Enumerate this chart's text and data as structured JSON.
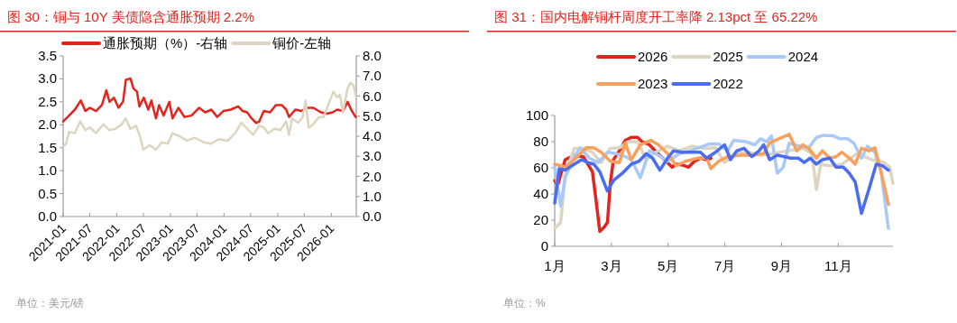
{
  "chart_data": [
    {
      "type": "line",
      "title": "图 30：铜与 10Y 美债隐含通胀预期 2.2%",
      "legend": "top",
      "xlim": [
        "2021-01-01",
        "2026-06-20"
      ],
      "xticks": [
        "2021-01",
        "2021-07",
        "2022-01",
        "2022-07",
        "2023-01",
        "2023-07",
        "2024-01",
        "2024-07",
        "2025-01",
        "2025-07",
        "2026-01"
      ],
      "ylim": [
        0,
        3.5
      ],
      "yticks": [
        {
          "value": 0,
          "label": "0.0"
        },
        {
          "value": 0.5,
          "label": "0.5"
        },
        {
          "value": 1,
          "label": "1.0"
        },
        {
          "value": 1.5,
          "label": "1.5"
        },
        {
          "value": 2,
          "label": "2.0"
        },
        {
          "value": 2.5,
          "label": "2.5"
        },
        {
          "value": 3,
          "label": "3.0"
        },
        {
          "value": 3.5,
          "label": "3.5"
        }
      ],
      "y2lim": [
        0,
        8
      ],
      "y2ticks": [
        {
          "value": 0,
          "label": "0.0"
        },
        {
          "value": 1,
          "label": "1.0"
        },
        {
          "value": 2,
          "label": "2.0"
        },
        {
          "value": 3,
          "label": "3.0"
        },
        {
          "value": 4,
          "label": "4.0"
        },
        {
          "value": 5,
          "label": "5.0"
        },
        {
          "value": 6,
          "label": "6.0"
        },
        {
          "value": 7,
          "label": "7.0"
        },
        {
          "value": 8,
          "label": "8.0"
        }
      ],
      "annotations": [
        "单位：美元/磅"
      ],
      "series": [
        {
          "name": "通胀预期（%）-右轴",
          "color": "#e3231c",
          "x": [
            "2021-01-01",
            "2021-02-10",
            "2021-03-22",
            "2021-05-01",
            "2021-06-01",
            "2021-07-01",
            "2021-08-13",
            "2021-09-22",
            "2021-10-22",
            "2021-11-13",
            "2021-12-13",
            "2022-01-13",
            "2022-02-13",
            "2022-03-04",
            "2022-04-04",
            "2022-04-25",
            "2022-05-19",
            "2022-06-04",
            "2022-07-04",
            "2022-08-04",
            "2022-08-25",
            "2022-09-25",
            "2022-10-16",
            "2022-11-16",
            "2022-12-25",
            "2023-01-16",
            "2023-02-25",
            "2023-04-07",
            "2023-05-25",
            "2023-07-16",
            "2023-08-25",
            "2023-10-07",
            "2023-11-16",
            "2023-12-28",
            "2024-02-16",
            "2024-04-07",
            "2024-05-07",
            "2024-06-07",
            "2024-07-07",
            "2024-08-07",
            "2024-08-28",
            "2024-09-28",
            "2024-11-10",
            "2024-12-19",
            "2025-01-28",
            "2025-02-28",
            "2025-03-19",
            "2025-05-01",
            "2025-06-10",
            "2025-07-19",
            "2025-09-01",
            "2025-10-22",
            "2025-12-01",
            "2026-01-10",
            "2026-02-10",
            "2026-03-22",
            "2026-04-22",
            "2026-05-16",
            "2026-06-15"
          ],
          "values": [
            2.07,
            2.2,
            2.33,
            2.53,
            2.3,
            2.37,
            2.3,
            2.43,
            2.75,
            2.5,
            2.59,
            2.37,
            2.5,
            2.98,
            3.01,
            2.79,
            2.72,
            2.4,
            2.59,
            2.33,
            2.53,
            2.14,
            2.43,
            2.2,
            2.5,
            2.14,
            2.37,
            2.17,
            2.2,
            2.37,
            2.27,
            2.33,
            2.17,
            2.3,
            2.33,
            2.4,
            2.3,
            2.27,
            2.14,
            2.04,
            2.07,
            2.3,
            2.27,
            2.43,
            2.43,
            2.33,
            2.17,
            2.33,
            2.3,
            2.37,
            2.37,
            2.27,
            2.24,
            2.27,
            2.33,
            2.3,
            2.5,
            2.33,
            2.17
          ]
        },
        {
          "name": "铜价-左轴",
          "color": "#ddd5c0",
          "axis": "y2",
          "x": [
            "2021-01-01",
            "2021-01-21",
            "2021-02-11",
            "2021-03-21",
            "2021-04-28",
            "2021-06-02",
            "2021-07-02",
            "2021-08-12",
            "2021-10-02",
            "2021-11-13",
            "2021-12-23",
            "2022-02-03",
            "2022-03-03",
            "2022-04-03",
            "2022-05-13",
            "2022-06-14",
            "2022-06-30",
            "2022-08-14",
            "2022-09-24",
            "2022-11-04",
            "2022-12-15",
            "2023-01-15",
            "2023-03-05",
            "2023-04-25",
            "2023-06-16",
            "2023-08-16",
            "2023-10-06",
            "2023-11-26",
            "2024-01-27",
            "2024-03-17",
            "2024-04-28",
            "2024-05-18",
            "2024-06-18",
            "2024-07-18",
            "2024-08-28",
            "2024-09-28",
            "2024-10-28",
            "2024-12-09",
            "2025-01-19",
            "2025-02-28",
            "2025-03-19",
            "2025-04-09",
            "2025-05-20",
            "2025-06-20",
            "2025-07-10",
            "2025-07-30",
            "2025-08-30",
            "2025-10-10",
            "2025-11-10",
            "2025-12-11",
            "2026-01-15",
            "2026-02-11",
            "2026-03-01",
            "2026-03-21",
            "2026-04-21",
            "2026-05-11",
            "2026-06-01",
            "2026-06-17"
          ],
          "values": [
            3.48,
            3.63,
            4.22,
            4.15,
            4.74,
            4.3,
            4.44,
            4.15,
            4.59,
            4.3,
            4.37,
            4.59,
            4.89,
            4.37,
            4.52,
            3.85,
            3.33,
            3.56,
            3.33,
            3.7,
            3.63,
            4.15,
            4.0,
            3.78,
            3.93,
            3.7,
            3.63,
            3.85,
            3.78,
            4.15,
            4.67,
            4.52,
            4.3,
            4.07,
            4.52,
            4.44,
            4.15,
            4.37,
            4.3,
            4.74,
            4.07,
            4.89,
            4.67,
            4.96,
            5.78,
            4.44,
            4.59,
            4.96,
            4.96,
            5.56,
            6.22,
            5.93,
            6.07,
            5.19,
            6.37,
            6.67,
            6.52,
            6.0
          ]
        }
      ]
    },
    {
      "type": "line",
      "title": "图 31：国内电解铜杆周度开工率降 2.13pct 至 65.22%",
      "legend": "top",
      "xlim": [
        1,
        12.93
      ],
      "xticks": [
        {
          "value": 1,
          "label": "1月"
        },
        {
          "value": 3,
          "label": "3月"
        },
        {
          "value": 5,
          "label": "5月"
        },
        {
          "value": 7,
          "label": "7月"
        },
        {
          "value": 9,
          "label": "9月"
        },
        {
          "value": 11,
          "label": "11月"
        }
      ],
      "ylim": [
        0,
        100
      ],
      "yticks": [
        0,
        20,
        40,
        60,
        80,
        100
      ],
      "annotations": [
        "单位：%"
      ],
      "series": [
        {
          "name": "2026",
          "color": "#e3231c",
          "x": [
            1.0,
            1.11,
            1.21,
            1.37,
            1.69,
            2.01,
            2.33,
            2.45,
            2.59,
            2.75,
            2.86,
            2.96,
            3.07,
            3.28,
            3.49,
            3.7,
            3.92,
            4.08,
            4.34,
            4.55,
            4.76,
            4.98,
            5.14,
            5.29,
            5.51,
            5.72,
            5.93,
            6.14,
            6.36,
            6.51
          ],
          "values": [
            50.2,
            46.8,
            54.8,
            66.2,
            69.6,
            68.5,
            57,
            36.5,
            11.4,
            14.8,
            18.3,
            47.9,
            66,
            73,
            81,
            83.3,
            83.3,
            80,
            77.6,
            73,
            68.5,
            64,
            60.5,
            62.8,
            62.1,
            60.5,
            65,
            67.4,
            66.2,
            67.4
          ]
        },
        {
          "name": "2025",
          "color": "#ddd5c0",
          "x": [
            1.0,
            1.21,
            1.37,
            1.69,
            2.01,
            2.33,
            2.64,
            2.96,
            3.28,
            3.6,
            3.92,
            4.23,
            4.55,
            4.98,
            5.4,
            5.83,
            6.25,
            6.67,
            6.99,
            7.42,
            7.84,
            8.26,
            8.69,
            9.22,
            9.75,
            10.07,
            10.23,
            10.38,
            10.7,
            11.13,
            11.66,
            12.19,
            12.61,
            12.82,
            12.93
          ],
          "values": [
            13.7,
            18.3,
            54.8,
            74.9,
            74.9,
            71.9,
            64,
            74.9,
            75.3,
            80,
            80,
            66.2,
            71.9,
            76.5,
            73,
            76.5,
            74.9,
            75.3,
            64,
            70.8,
            71.9,
            69.6,
            70.8,
            73,
            74.9,
            70.8,
            43.4,
            62.8,
            61.6,
            62.8,
            70.8,
            66.2,
            64,
            60.5,
            47.9
          ]
        },
        {
          "name": "2024",
          "color": "#a9c9fb",
          "x": [
            1.0,
            1.21,
            1.37,
            1.69,
            1.9,
            2.22,
            2.54,
            2.86,
            3.17,
            3.49,
            3.7,
            4.02,
            4.34,
            4.66,
            4.98,
            5.4,
            6.04,
            6.46,
            6.78,
            7.1,
            7.31,
            7.73,
            8.05,
            8.26,
            8.48,
            8.64,
            8.85,
            9.06,
            9.27,
            9.64,
            9.96,
            10.23,
            10.49,
            10.81,
            11.07,
            11.34,
            11.55,
            11.82,
            12.03,
            12.29,
            12.51,
            12.77
          ],
          "values": [
            60.5,
            30.8,
            52.5,
            68.5,
            75.3,
            67.4,
            64,
            71.9,
            70.8,
            68.5,
            66.2,
            52.5,
            73,
            69.6,
            65,
            70.8,
            74.9,
            78.3,
            78.3,
            73,
            81,
            80,
            77.6,
            82.2,
            80,
            84.5,
            55.9,
            60.5,
            78.8,
            76.5,
            75.3,
            83.3,
            84.9,
            84.5,
            82.2,
            82.2,
            78.8,
            67.4,
            76.5,
            71.9,
            57,
            13.7
          ]
        },
        {
          "name": "2023",
          "color": "#f9a05c",
          "x": [
            1.0,
            1.21,
            1.37,
            1.69,
            2.11,
            2.38,
            2.64,
            2.96,
            3.28,
            3.49,
            3.7,
            4.02,
            4.39,
            4.66,
            4.98,
            5.29,
            5.61,
            6.04,
            6.36,
            6.51,
            6.78,
            7.1,
            7.52,
            7.95,
            8.37,
            8.58,
            8.9,
            9.27,
            9.54,
            9.75,
            9.96,
            10.23,
            10.44,
            10.7,
            10.92,
            11.13,
            11.39,
            11.6,
            11.82,
            12.08,
            12.29,
            12.51,
            12.77
          ],
          "values": [
            62.8,
            61.6,
            60.5,
            66.2,
            75.3,
            75.3,
            71.9,
            65,
            64,
            79,
            66.2,
            77.6,
            81,
            77.6,
            70.8,
            61.6,
            65,
            67.4,
            67.4,
            59.4,
            65,
            68.5,
            69.6,
            69.6,
            70.8,
            79,
            82.2,
            85.6,
            73,
            77.6,
            74.9,
            67.4,
            73,
            67.4,
            68.5,
            71.9,
            67.4,
            62.8,
            74.9,
            73,
            75.3,
            57,
            32
          ]
        },
        {
          "name": "2022",
          "color": "#4a6cf2",
          "x": [
            1.0,
            1.16,
            1.37,
            1.69,
            1.95,
            2.17,
            2.38,
            2.59,
            2.86,
            3.07,
            3.39,
            3.7,
            3.97,
            4.23,
            4.45,
            4.71,
            4.98,
            5.19,
            5.51,
            5.83,
            6.14,
            6.36,
            6.67,
            6.99,
            7.2,
            7.42,
            7.68,
            7.95,
            8.21,
            8.37,
            8.58,
            8.85,
            9.11,
            9.32,
            9.59,
            9.8,
            10.01,
            10.23,
            10.44,
            10.7,
            10.92,
            11.18,
            11.39,
            11.6,
            11.82,
            12.08,
            12.34,
            12.56,
            12.77
          ],
          "values": [
            33.1,
            59.4,
            58.2,
            62.8,
            66.2,
            64,
            62.8,
            57,
            42.2,
            50.2,
            55.9,
            62.8,
            65,
            70.8,
            67.4,
            58.2,
            67.4,
            73,
            71.9,
            71.9,
            71.9,
            67.4,
            71.9,
            77.6,
            66.2,
            73,
            74.9,
            68.5,
            73,
            77.6,
            66.2,
            69.6,
            68.5,
            67.4,
            67.4,
            64,
            67.4,
            62.8,
            66.2,
            67.4,
            60.5,
            60.5,
            55.9,
            49.1,
            25.1,
            43.4,
            62.8,
            61.6,
            58.2
          ]
        }
      ]
    }
  ]
}
